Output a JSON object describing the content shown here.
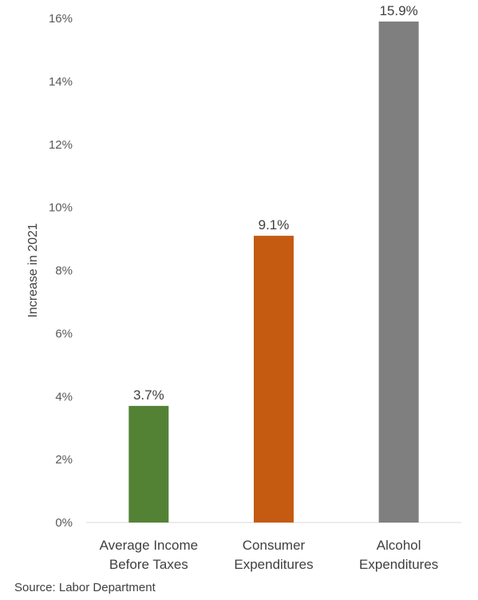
{
  "chart_data": {
    "type": "bar",
    "categories": [
      [
        "Average Income",
        "Before Taxes"
      ],
      [
        "Consumer",
        "Expenditures"
      ],
      [
        "Alcohol",
        "Expenditures"
      ]
    ],
    "values": [
      3.7,
      9.1,
      15.9
    ],
    "data_labels": [
      "3.7%",
      "9.1%",
      "15.9%"
    ],
    "colors": [
      "#548235",
      "#C55A11",
      "#7F7F7F"
    ],
    "ylabel": "Increase in 2021",
    "ylim": [
      0,
      16
    ],
    "y_ticks": [
      {
        "value": 0,
        "label": "0%"
      },
      {
        "value": 2,
        "label": "2%"
      },
      {
        "value": 4,
        "label": "4%"
      },
      {
        "value": 6,
        "label": "6%"
      },
      {
        "value": 8,
        "label": "8%"
      },
      {
        "value": 10,
        "label": "10%"
      },
      {
        "value": 12,
        "label": "12%"
      },
      {
        "value": 14,
        "label": "14%"
      },
      {
        "value": 16,
        "label": "16%"
      }
    ],
    "grid": false,
    "legend": "none"
  },
  "source": "Source: Labor Department"
}
